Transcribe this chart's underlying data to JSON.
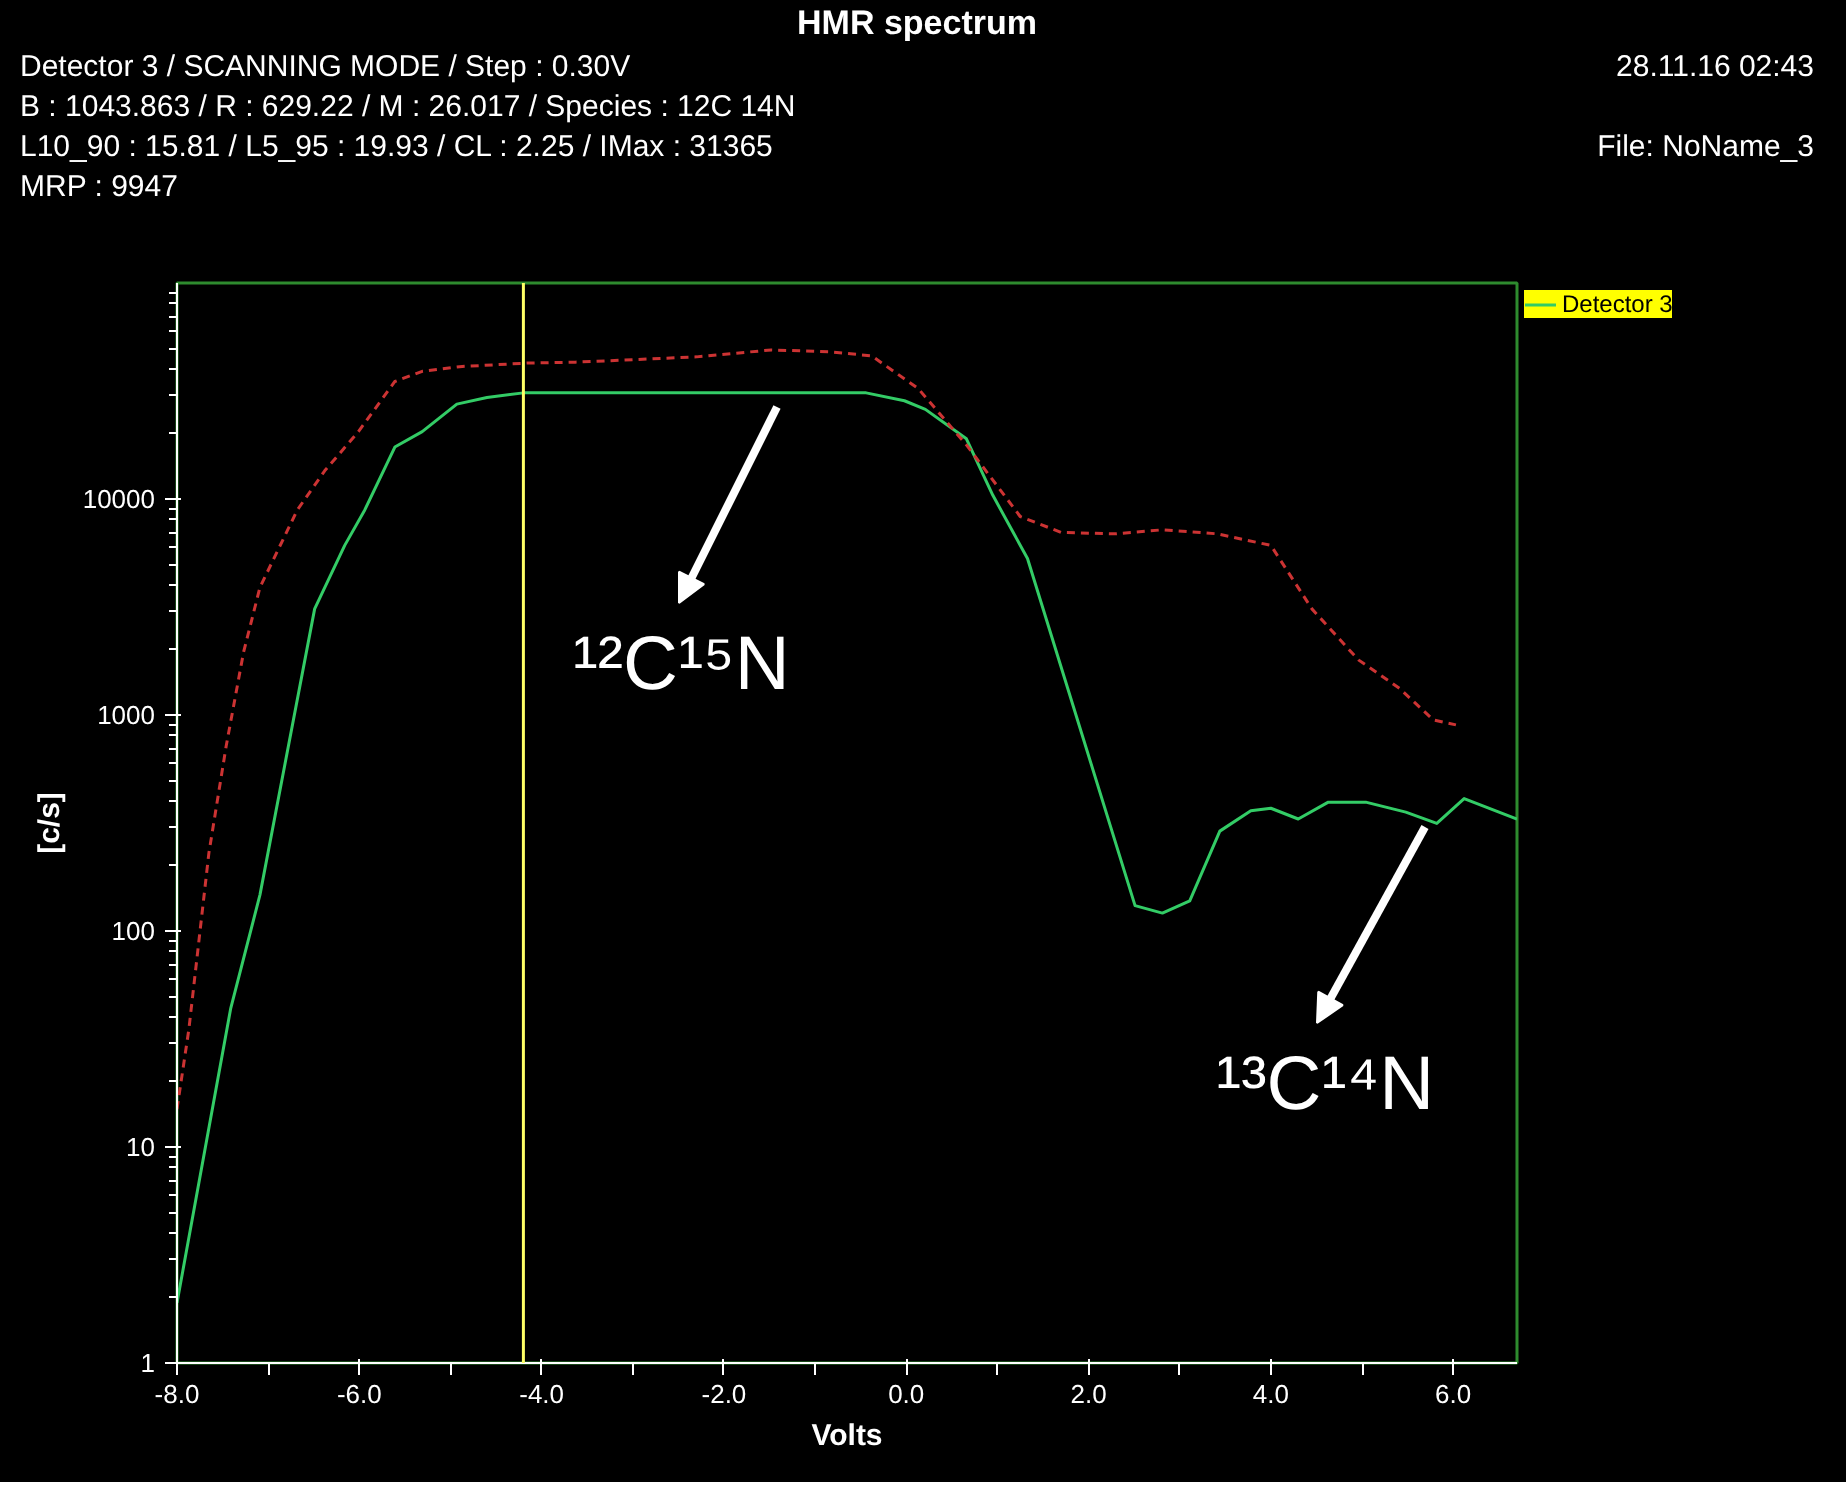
{
  "chart_data": {
    "type": "line",
    "title": "HMR spectrum",
    "xlabel": "Volts",
    "ylabel": "[c/s]",
    "annotations": [
      "Detector 3 / SCANNING MODE / Step : 0.30V",
      "28.11.16 02:43",
      "B : 1043.863 / R : 629.22 / M : 26.017 / Species : 12C 14N",
      "L10_90 : 15.81 / L5_95 : 19.93 / CL : 2.25 / IMax : 31365",
      "File: NoName_3",
      "MRP : 9947",
      "¹²C¹⁵N",
      "¹³C¹⁴N"
    ],
    "xlim": [
      -8,
      6.7
    ],
    "xticks": [
      {
        "value": -8,
        "label": "-8.0"
      },
      {
        "value": -7,
        "label": null
      },
      {
        "value": -6,
        "label": "-6.0"
      },
      {
        "value": -5,
        "label": null
      },
      {
        "value": -4,
        "label": "-4.0"
      },
      {
        "value": -3,
        "label": null
      },
      {
        "value": -2,
        "label": "-2.0"
      },
      {
        "value": -1,
        "label": null
      },
      {
        "value": 0,
        "label": "0.0"
      },
      {
        "value": 1,
        "label": null
      },
      {
        "value": 2,
        "label": "2.0"
      },
      {
        "value": 3,
        "label": null
      },
      {
        "value": 4,
        "label": "4.0"
      },
      {
        "value": 5,
        "label": null
      },
      {
        "value": 6,
        "label": "6.0"
      }
    ],
    "ylim": [
      1,
      100000
    ],
    "yticks": [
      1,
      10,
      100,
      1000,
      10000
    ],
    "log": true,
    "grid": false,
    "legend": "top right",
    "ref_lines": [
      {
        "axis": "x",
        "value": -4.2,
        "color": "#ffff66"
      }
    ],
    "series": [
      {
        "name": "Detector 3",
        "color": "#33cc66",
        "line_style": "solid",
        "x": [
          -8.0,
          -7.41,
          -7.09,
          -6.49,
          -6.16,
          -5.94,
          -5.61,
          -5.31,
          -4.93,
          -4.6,
          -4.2,
          -0.83,
          -0.44,
          -0.02,
          0.21,
          0.66,
          0.95,
          1.33,
          2.51,
          2.81,
          3.11,
          3.44,
          3.78,
          4.0,
          4.3,
          4.63,
          5.04,
          5.48,
          5.82,
          6.12,
          6.7
        ],
        "values": [
          1.9,
          44,
          147,
          3100,
          6100,
          8900,
          17400,
          20500,
          27500,
          29500,
          31000,
          31000,
          31000,
          28500,
          26000,
          19000,
          10400,
          5300,
          131,
          121,
          138,
          290,
          360,
          370,
          330,
          395,
          395,
          355,
          315,
          410,
          330
        ]
      },
      {
        "color": "#cc3333",
        "line_style": "dashed",
        "x": [
          -8.0,
          -7.87,
          -7.65,
          -7.46,
          -7.27,
          -7.09,
          -6.68,
          -6.38,
          -6.01,
          -5.61,
          -5.31,
          -4.9,
          -4.15,
          -3.63,
          -2.3,
          -1.48,
          -0.83,
          -0.38,
          0.13,
          0.66,
          1.25,
          1.7,
          2.29,
          2.81,
          3.41,
          4.0,
          4.45,
          4.96,
          5.41,
          5.78,
          6.03
        ],
        "values": [
          15,
          35,
          230,
          720,
          1950,
          3900,
          8900,
          13500,
          20500,
          35000,
          39000,
          41000,
          42600,
          43000,
          45500,
          49000,
          48000,
          46000,
          32500,
          17800,
          8300,
          7000,
          6900,
          7200,
          6900,
          6100,
          3100,
          1800,
          1330,
          950,
          900
        ]
      }
    ]
  }
}
